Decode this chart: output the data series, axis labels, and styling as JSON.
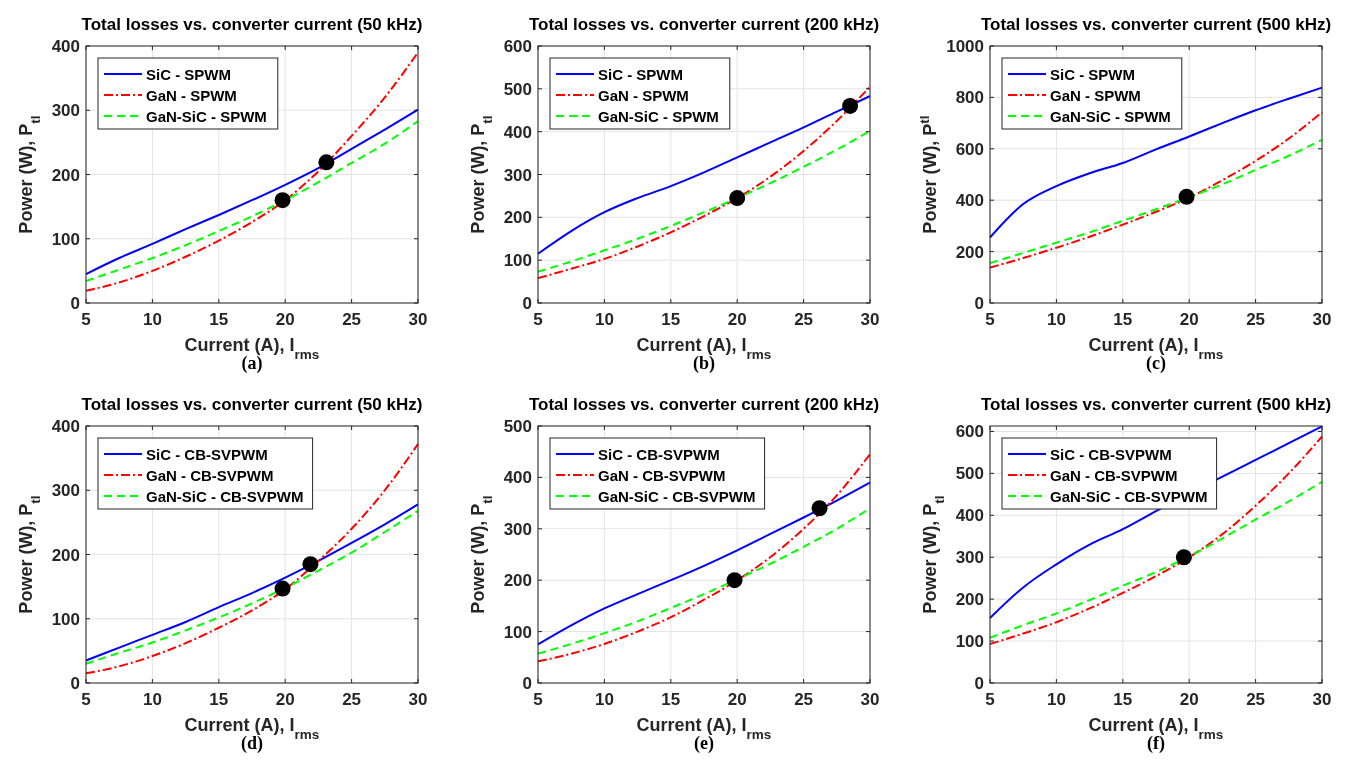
{
  "chart_data": [
    {
      "type": "line",
      "title": "Total losses vs. converter current (50 kHz)",
      "xlabel": "Current (A), I$_{rms}$",
      "ylabel": "Power (W), P$_{tl}$",
      "annotations": [
        "(a)"
      ],
      "xlim": [
        5,
        30
      ],
      "xticks": [
        5,
        10,
        15,
        20,
        25,
        30
      ],
      "ylim": [
        0,
        400
      ],
      "yticks": [
        0,
        100,
        200,
        300,
        400
      ],
      "grid": true,
      "legend": "top left",
      "x": [
        5,
        7.5,
        10,
        12.5,
        15,
        17.5,
        20,
        22.5,
        25,
        27.5,
        30
      ],
      "series": [
        {
          "name": "SiC - SPWM",
          "color": "#0000ff",
          "line_style": "solid",
          "values": [
            45,
            70,
            92,
            115,
            137,
            160,
            184,
            210,
            240,
            270,
            301
          ]
        },
        {
          "name": "GaN - SPWM",
          "color": "#ff0000",
          "line_style": "dashdot",
          "values": [
            19,
            32,
            50,
            72,
            97,
            126,
            160,
            205,
            260,
            320,
            390
          ]
        },
        {
          "name": "GaN-SiC - SPWM",
          "color": "#00ff00",
          "line_style": "dashed",
          "values": [
            34,
            52,
            70,
            90,
            112,
            135,
            160,
            188,
            218,
            248,
            283
          ]
        },
        {
          "type": "scatter",
          "color": "#000000",
          "marker": "circle",
          "x": [
            19.8,
            23.1
          ],
          "values": [
            160,
            219
          ]
        }
      ]
    },
    {
      "type": "line",
      "title": "Total losses vs. converter current (200 kHz)",
      "xlabel": "Current (A), I$_{rms}$",
      "ylabel": "Power (W), P$_{tl}$",
      "annotations": [
        "(b)"
      ],
      "xlim": [
        5,
        30
      ],
      "xticks": [
        5,
        10,
        15,
        20,
        25,
        30
      ],
      "ylim": [
        0,
        600
      ],
      "yticks": [
        0,
        100,
        200,
        300,
        400,
        500,
        600
      ],
      "grid": true,
      "legend": "top left",
      "x": [
        5,
        7.5,
        10,
        12.5,
        15,
        17.5,
        20,
        22.5,
        25,
        27.5,
        30
      ],
      "series": [
        {
          "name": "SiC - SPWM",
          "color": "#0000ff",
          "line_style": "solid",
          "values": [
            115,
            168,
            212,
            245,
            273,
            305,
            340,
            375,
            410,
            447,
            483
          ]
        },
        {
          "name": "GaN - SPWM",
          "color": "#ff0000",
          "line_style": "dashdot",
          "values": [
            58,
            80,
            103,
            132,
            165,
            203,
            245,
            295,
            355,
            425,
            505
          ]
        },
        {
          "name": "GaN-SiC - SPWM",
          "color": "#00ff00",
          "line_style": "dashed",
          "values": [
            73,
            97,
            123,
            150,
            180,
            212,
            245,
            280,
            318,
            358,
            402
          ]
        },
        {
          "type": "scatter",
          "color": "#000000",
          "marker": "circle",
          "x": [
            20,
            28.5
          ],
          "values": [
            245,
            460
          ]
        }
      ]
    },
    {
      "type": "line",
      "title": "Total losses vs. converter current (500 kHz)",
      "xlabel": "Current (A), I$_{rms}$",
      "ylabel": "Power (W), P$^{tl}$",
      "annotations": [
        "(c)"
      ],
      "xlim": [
        5,
        30
      ],
      "xticks": [
        5,
        10,
        15,
        20,
        25,
        30
      ],
      "ylim": [
        0,
        1000
      ],
      "yticks": [
        0,
        200,
        400,
        600,
        800,
        1000
      ],
      "grid": true,
      "legend": "top left",
      "x": [
        5,
        7.5,
        10,
        12.5,
        15,
        17.5,
        20,
        22.5,
        25,
        27.5,
        30
      ],
      "series": [
        {
          "name": "SiC - SPWM",
          "color": "#0000ff",
          "line_style": "solid",
          "values": [
            255,
            385,
            455,
            505,
            545,
            598,
            648,
            700,
            750,
            795,
            838
          ]
        },
        {
          "name": "GaN - SPWM",
          "color": "#ff0000",
          "line_style": "dashdot",
          "values": [
            138,
            175,
            215,
            258,
            305,
            355,
            410,
            478,
            553,
            640,
            742
          ]
        },
        {
          "name": "GaN-SiC - SPWM",
          "color": "#00ff00",
          "line_style": "dashed",
          "values": [
            155,
            195,
            235,
            275,
            320,
            365,
            412,
            462,
            518,
            573,
            635
          ]
        },
        {
          "type": "scatter",
          "color": "#000000",
          "marker": "circle",
          "x": [
            19.8
          ],
          "values": [
            413
          ]
        }
      ]
    },
    {
      "type": "line",
      "title": "Total losses vs. converter current (50 kHz)",
      "xlabel": "Current (A), I$_{rms}$",
      "ylabel": "Power (W), P$_{tl}$",
      "annotations": [
        "(d)"
      ],
      "xlim": [
        5,
        30
      ],
      "xticks": [
        5,
        10,
        15,
        20,
        25,
        30
      ],
      "ylim": [
        0,
        400
      ],
      "yticks": [
        0,
        100,
        200,
        300,
        400
      ],
      "grid": true,
      "legend": "top left",
      "x": [
        5,
        7.5,
        10,
        12.5,
        15,
        17.5,
        20,
        22.5,
        25,
        27.5,
        30
      ],
      "series": [
        {
          "name": "SiC - CB-SVPWM",
          "color": "#0000ff",
          "line_style": "solid",
          "values": [
            35,
            55,
            75,
            95,
            118,
            140,
            164,
            190,
            218,
            247,
            278
          ]
        },
        {
          "name": "GaN - CB-SVPWM",
          "color": "#ff0000",
          "line_style": "dashdot",
          "values": [
            15,
            26,
            42,
            62,
            86,
            113,
            146,
            190,
            240,
            300,
            372
          ]
        },
        {
          "name": "GaN-SiC - CB-SVPWM",
          "color": "#00ff00",
          "line_style": "dashed",
          "values": [
            30,
            47,
            63,
            82,
            102,
            124,
            148,
            175,
            203,
            235,
            268
          ]
        },
        {
          "type": "scatter",
          "color": "#000000",
          "marker": "circle",
          "x": [
            19.8,
            21.9
          ],
          "values": [
            147,
            185
          ]
        }
      ]
    },
    {
      "type": "line",
      "title": "Total losses vs. converter current (200 kHz)",
      "xlabel": "Current (A), I$_{rms}$",
      "ylabel": "Power (W), P$_{tl}$",
      "annotations": [
        "(e)"
      ],
      "xlim": [
        5,
        30
      ],
      "xticks": [
        5,
        10,
        15,
        20,
        25,
        30
      ],
      "ylim": [
        0,
        500
      ],
      "yticks": [
        0,
        100,
        200,
        300,
        400,
        500
      ],
      "grid": true,
      "legend": "top left",
      "x": [
        5,
        7.5,
        10,
        12.5,
        15,
        17.5,
        20,
        22.5,
        25,
        27.5,
        30
      ],
      "series": [
        {
          "name": "SiC - CB-SVPWM",
          "color": "#0000ff",
          "line_style": "solid",
          "values": [
            75,
            112,
            145,
            173,
            200,
            228,
            258,
            290,
            322,
            355,
            390
          ]
        },
        {
          "name": "GaN - CB-SVPWM",
          "color": "#ff0000",
          "line_style": "dashdot",
          "values": [
            42,
            57,
            76,
            100,
            128,
            162,
            200,
            245,
            300,
            365,
            445
          ]
        },
        {
          "name": "GaN-SiC - CB-SVPWM",
          "color": "#00ff00",
          "line_style": "dashed",
          "values": [
            57,
            76,
            97,
            120,
            146,
            173,
            202,
            232,
            265,
            300,
            340
          ]
        },
        {
          "type": "scatter",
          "color": "#000000",
          "marker": "circle",
          "x": [
            19.8,
            26.2
          ],
          "values": [
            200,
            340
          ]
        }
      ]
    },
    {
      "type": "line",
      "title": "Total losses vs. converter current (500 kHz)",
      "xlabel": "Current (A), I$_{rms}$",
      "ylabel": "Power (W), P$_{tl}$",
      "annotations": [
        "(f)"
      ],
      "xlim": [
        5,
        30
      ],
      "xticks": [
        5,
        10,
        15,
        20,
        25,
        30
      ],
      "ylim": [
        0,
        613
      ],
      "yticks": [
        0,
        100,
        200,
        300,
        400,
        500,
        600
      ],
      "grid": true,
      "legend": "top left",
      "x": [
        5,
        7.5,
        10,
        12.5,
        15,
        17.5,
        20,
        22.5,
        25,
        27.5,
        30
      ],
      "series": [
        {
          "name": "SiC - CB-SVPWM",
          "color": "#0000ff",
          "line_style": "solid",
          "values": [
            155,
            228,
            283,
            330,
            367,
            410,
            null,
            492,
            532,
            572,
            612
          ]
        },
        {
          "name": "GaN - CB-SVPWM",
          "color": "#ff0000",
          "line_style": "dashdot",
          "values": [
            93,
            118,
            145,
            178,
            215,
            255,
            300,
            355,
            423,
            500,
            588
          ]
        },
        {
          "name": "GaN-SiC - CB-SVPWM",
          "color": "#00ff00",
          "line_style": "dashed",
          "values": [
            108,
            138,
            166,
            198,
            232,
            265,
            302,
            345,
            390,
            433,
            480
          ]
        },
        {
          "type": "scatter",
          "color": "#000000",
          "marker": "circle",
          "x": [
            19.6
          ],
          "values": [
            300
          ]
        }
      ]
    }
  ]
}
